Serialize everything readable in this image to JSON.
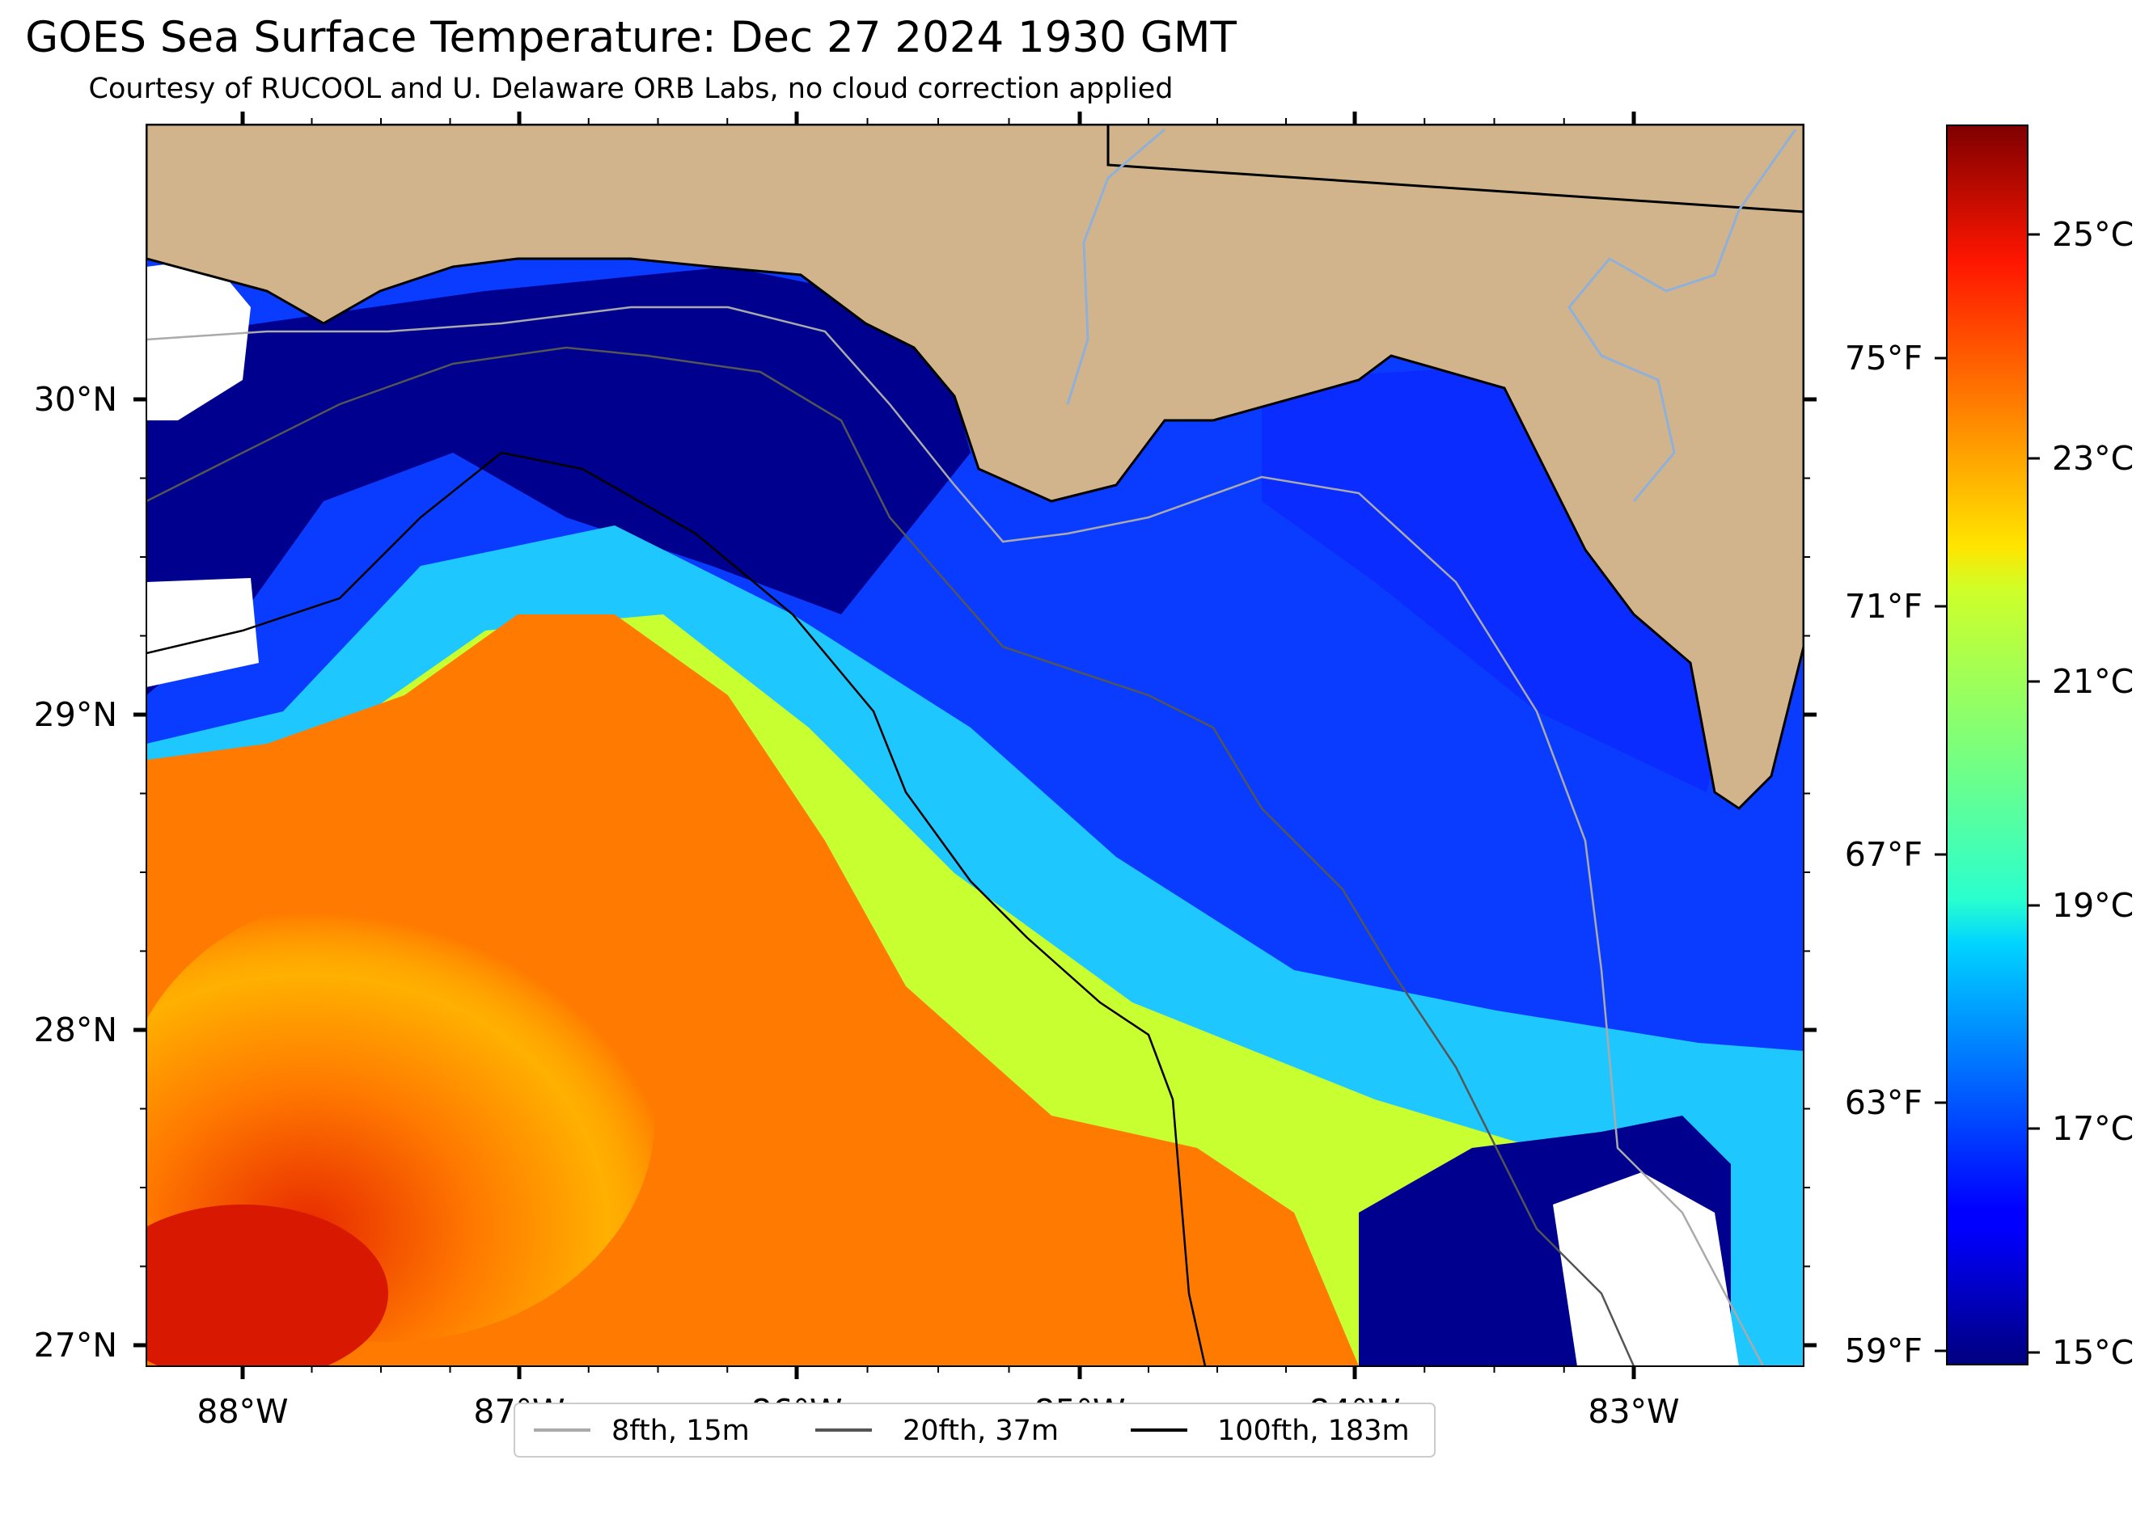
{
  "title": "GOES Sea Surface Temperature: Dec 27 2024 1930 GMT",
  "subtitle": "Courtesy of RUCOOL and U. Delaware ORB Labs, no cloud correction applied",
  "map": {
    "lon_labels": [
      "88°W",
      "87°W",
      "86°W",
      "85°W",
      "84°W",
      "83°W"
    ],
    "lat_labels": [
      "30°N",
      "29°N",
      "28°N",
      "27°N"
    ],
    "colors": {
      "land": "#d2b48c",
      "nodata": "#ffffff",
      "coast": "#000000",
      "river": "#8fb0d8"
    }
  },
  "colorbar": {
    "celsius_labels": [
      "25°C",
      "23°C",
      "21°C",
      "19°C",
      "17°C",
      "15°C"
    ],
    "fahrenheit_labels": [
      "75°F",
      "71°F",
      "67°F",
      "63°F",
      "59°F"
    ],
    "colormap": "jet"
  },
  "legend": {
    "items": [
      {
        "label": "8fth, 15m",
        "color": "#aaaaaa"
      },
      {
        "label": "20fth, 37m",
        "color": "#555555"
      },
      {
        "label": "100fth, 183m",
        "color": "#000000"
      }
    ]
  }
}
